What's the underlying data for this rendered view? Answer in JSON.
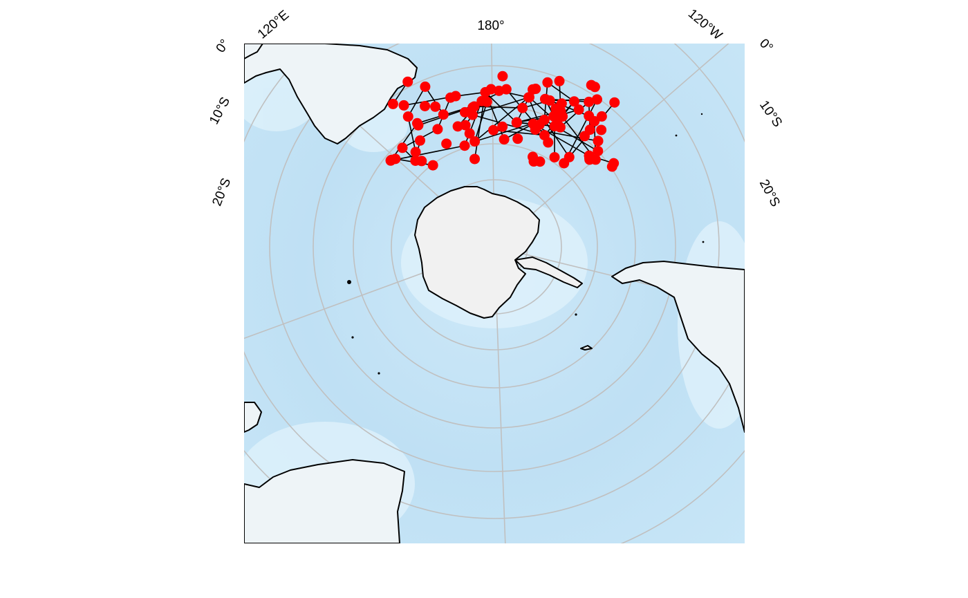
{
  "map": {
    "projection": "south-polar stereographic",
    "colors": {
      "ocean": "#bfe1f5",
      "ocean_shallow": "#def1fb",
      "land": "#eef4f7",
      "ice": "#f2f2f2",
      "graticule": "#c0c0c0",
      "coast": "#000000",
      "point": "#ff0000",
      "link": "#000000"
    },
    "labels": {
      "top_left_lon": "120°E",
      "top_center_lon": "180°",
      "top_right_lon": "120°W",
      "left_0": "0°",
      "left_10": "10°S",
      "left_20": "20°S",
      "right_0": "0°",
      "right_10": "10°S",
      "right_20": "20°S"
    },
    "point_count": 96
  }
}
